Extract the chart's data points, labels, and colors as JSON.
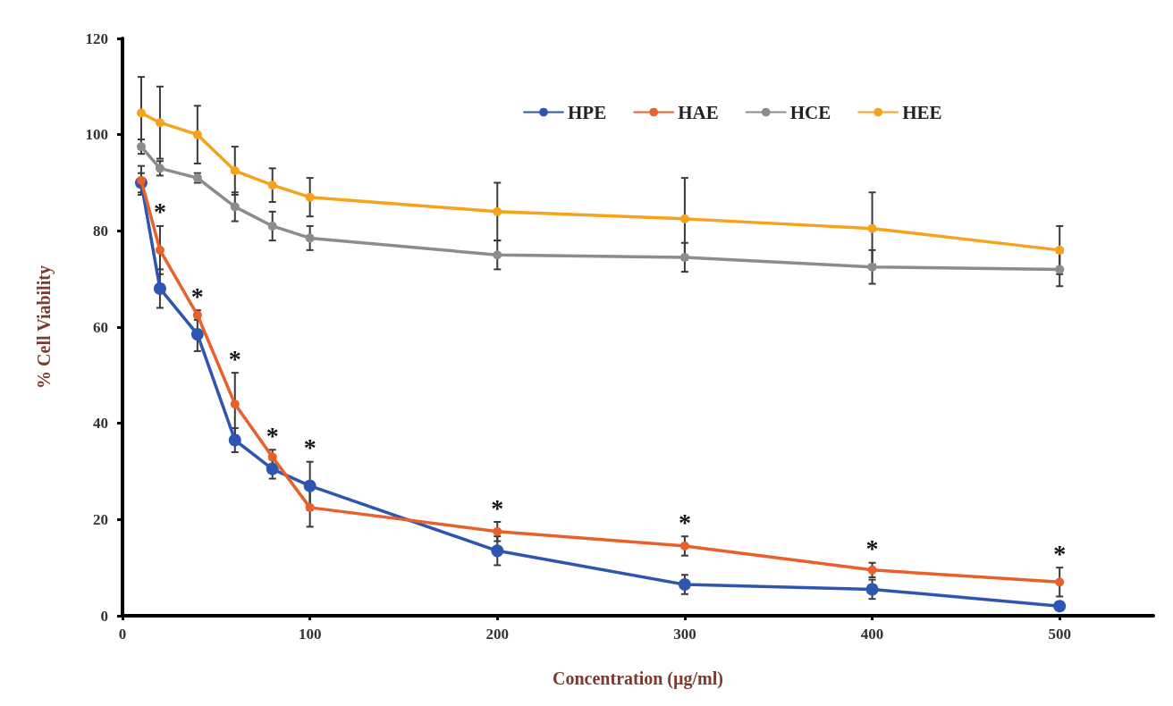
{
  "chart_data": {
    "type": "line",
    "xlabel": "Concentration (µg/ml)",
    "ylabel": "% Cell Viability",
    "x": [
      10,
      20,
      40,
      60,
      80,
      100,
      200,
      300,
      400,
      500
    ],
    "xlim": [
      0,
      550
    ],
    "xticks": [
      0,
      100,
      200,
      300,
      400,
      500
    ],
    "ylim": [
      0,
      120
    ],
    "yticks": [
      0,
      20,
      40,
      60,
      80,
      100,
      120
    ],
    "grid": false,
    "legend": "top right",
    "marker": "circle",
    "line_style": "solid",
    "series": [
      {
        "name": "HPE",
        "color": "#2e55b0",
        "values": [
          90,
          68,
          58.5,
          36.5,
          30.5,
          27,
          13.5,
          6.5,
          5.5,
          2
        ],
        "errors": [
          2,
          4,
          3.5,
          2.5,
          2,
          5,
          3,
          2,
          2,
          null
        ]
      },
      {
        "name": "HAE",
        "color": "#e8602a",
        "values": [
          90.5,
          76,
          62.5,
          44,
          33,
          22.5,
          17.5,
          14.5,
          9.5,
          7
        ],
        "errors": [
          3,
          5,
          1,
          6.5,
          1.5,
          4,
          2,
          2,
          1.5,
          3
        ]
      },
      {
        "name": "HCE",
        "color": "#8c8c8c",
        "values": [
          97.5,
          93,
          91,
          85,
          81,
          78.5,
          75,
          74.5,
          72.5,
          72
        ],
        "errors": [
          1.5,
          1.5,
          1,
          3,
          3,
          2.5,
          3,
          3,
          3.5,
          3.5
        ]
      },
      {
        "name": "HEE",
        "color": "#f7a21b",
        "values": [
          104.5,
          102.5,
          100,
          92.5,
          89.5,
          87,
          84,
          82.5,
          80.5,
          76
        ],
        "errors": [
          7.5,
          7.5,
          6,
          5,
          3.5,
          4,
          6,
          8.5,
          7.5,
          5
        ]
      }
    ],
    "annotations": [
      {
        "text": "*",
        "x": 20,
        "y": 76
      },
      {
        "text": "*",
        "x": 40,
        "y": 62.5
      },
      {
        "text": "*",
        "x": 60,
        "y": 44
      },
      {
        "text": "*",
        "x": 80,
        "y": 33
      },
      {
        "text": "*",
        "x": 100,
        "y": 22.5
      },
      {
        "text": "*",
        "x": 200,
        "y": 17.5
      },
      {
        "text": "*",
        "x": 300,
        "y": 14.5
      },
      {
        "text": "*",
        "x": 400,
        "y": 9.5
      },
      {
        "text": "*",
        "x": 500,
        "y": 7
      }
    ]
  }
}
